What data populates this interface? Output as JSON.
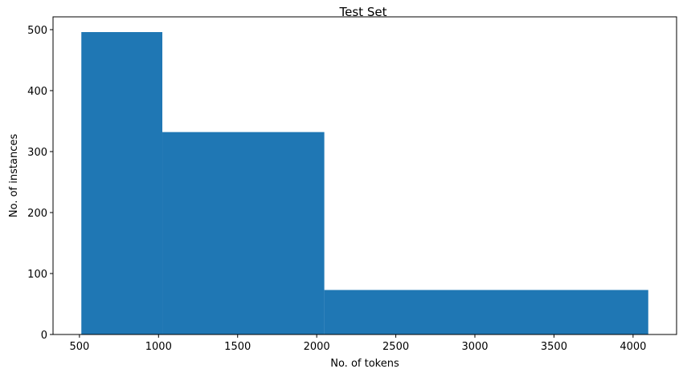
{
  "chart_data": {
    "type": "bar",
    "title": "Test Set",
    "xlabel": "No. of tokens",
    "ylabel": "No. of instances",
    "bins": [
      {
        "start": 512,
        "end": 1024,
        "value": 496
      },
      {
        "start": 1024,
        "end": 2048,
        "value": 332
      },
      {
        "start": 2048,
        "end": 4096,
        "value": 73
      }
    ],
    "xlim": [
      333,
      4275
    ],
    "ylim": [
      0,
      521
    ],
    "xticks": [
      500,
      1000,
      1500,
      2000,
      2500,
      3000,
      3500,
      4000
    ],
    "yticks": [
      0,
      100,
      200,
      300,
      400,
      500
    ],
    "bar_color": "#1f77b4",
    "grid": false,
    "legend": null
  }
}
